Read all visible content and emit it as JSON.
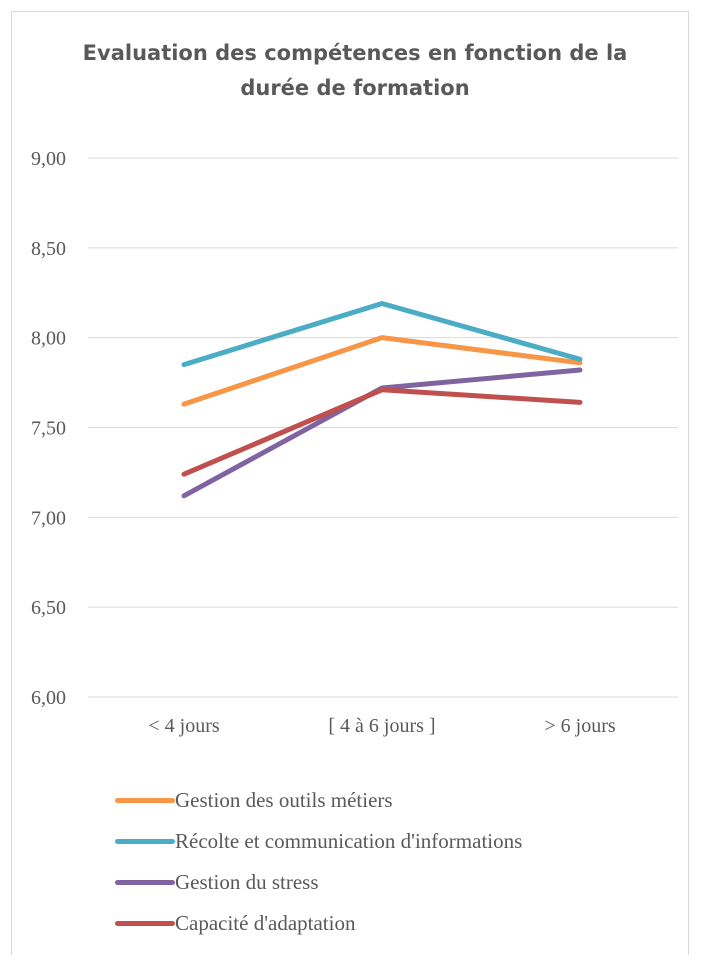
{
  "chart_data": {
    "type": "line",
    "title": "Evaluation des compétences en fonction de la durée de formation",
    "categories": [
      "< 4 jours",
      "[ 4 à 6 jours ]",
      "> 6 jours"
    ],
    "ylim": [
      6.0,
      9.0
    ],
    "yticks": [
      "6,00",
      "6,50",
      "7,00",
      "7,50",
      "8,00",
      "8,50",
      "9,00"
    ],
    "ytick_values": [
      6.0,
      6.5,
      7.0,
      7.5,
      8.0,
      8.5,
      9.0
    ],
    "grid": true,
    "legend_position": "bottom",
    "series": [
      {
        "name": "Gestion des outils métiers",
        "values": [
          7.63,
          8.0,
          7.86
        ],
        "color": "#F79646"
      },
      {
        "name": "Récolte et communication d'informations",
        "values": [
          7.85,
          8.19,
          7.88
        ],
        "color": "#4BACC6"
      },
      {
        "name": "Gestion du stress",
        "values": [
          7.12,
          7.72,
          7.82
        ],
        "color": "#8064A2"
      },
      {
        "name": "Capacité d'adaptation",
        "values": [
          7.24,
          7.71,
          7.64
        ],
        "color": "#C0504D"
      }
    ]
  }
}
